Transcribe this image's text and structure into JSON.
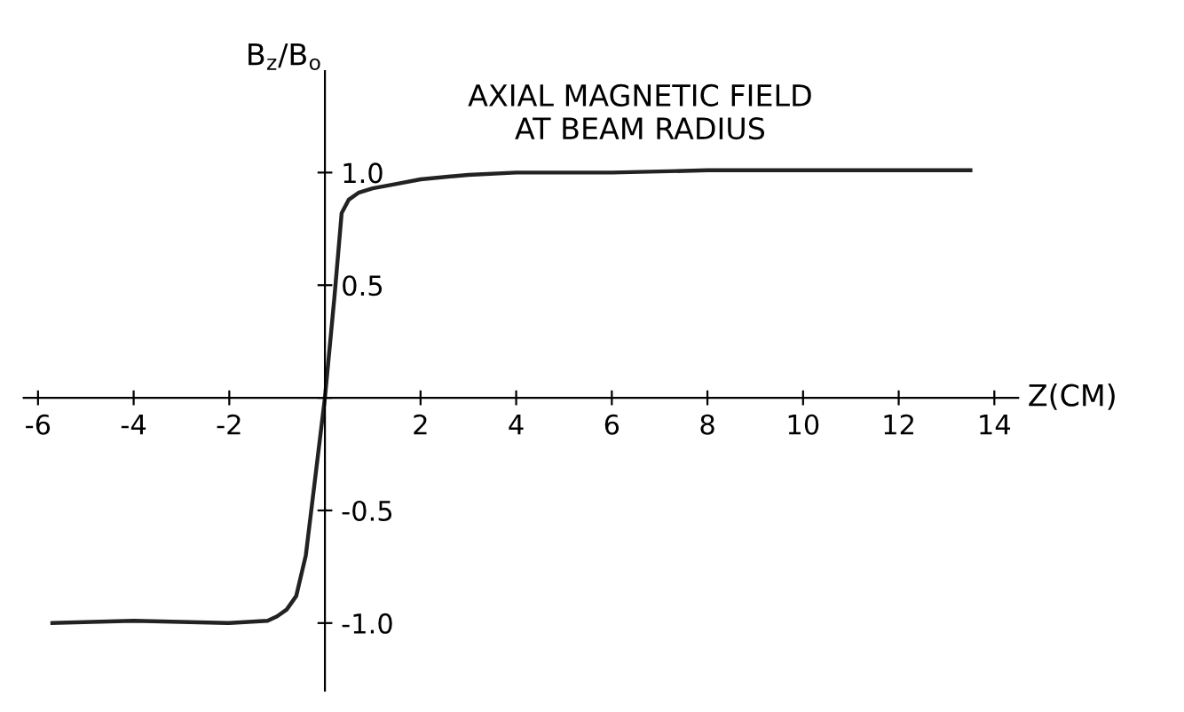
{
  "chart_data": {
    "type": "line",
    "title": "AXIAL MAGNETIC FIELD\nAT BEAM RADIUS",
    "xlabel": "Z(CM)",
    "ylabel": "B$_{z}$/B$_{o}$",
    "x": [
      -5.7,
      -4,
      -2,
      -1.2,
      -1,
      -0.8,
      -0.6,
      -0.4,
      -0.2,
      0,
      0.2,
      0.35,
      0.5,
      0.7,
      1,
      1.5,
      2,
      3,
      4,
      6,
      8,
      10,
      12,
      13.5
    ],
    "series": [
      {
        "color": "#222222",
        "values": [
          -1.0,
          -0.99,
          -1.0,
          -0.99,
          -0.97,
          -0.94,
          -0.88,
          -0.7,
          -0.35,
          0,
          0.45,
          0.82,
          0.88,
          0.91,
          0.93,
          0.95,
          0.97,
          0.99,
          1.0,
          1.0,
          1.01,
          1.01,
          1.01,
          1.01
        ]
      }
    ],
    "xlim": [
      -6.3,
      14.5
    ],
    "ylim": [
      -1.3,
      1.45
    ],
    "xticks": [
      -6,
      -4,
      -2,
      {
        "value": 0,
        "label": null
      },
      2,
      4,
      6,
      8,
      10,
      12,
      14
    ],
    "yticks": [
      {
        "value": -1,
        "label": "-1.0"
      },
      {
        "value": -0.5,
        "label": "-0.5"
      },
      {
        "value": 0,
        "label": null
      },
      0.5,
      {
        "value": 1,
        "label": "1.0"
      }
    ],
    "grid": false,
    "legend": false,
    "marker": "none",
    "line_style": "solid"
  }
}
